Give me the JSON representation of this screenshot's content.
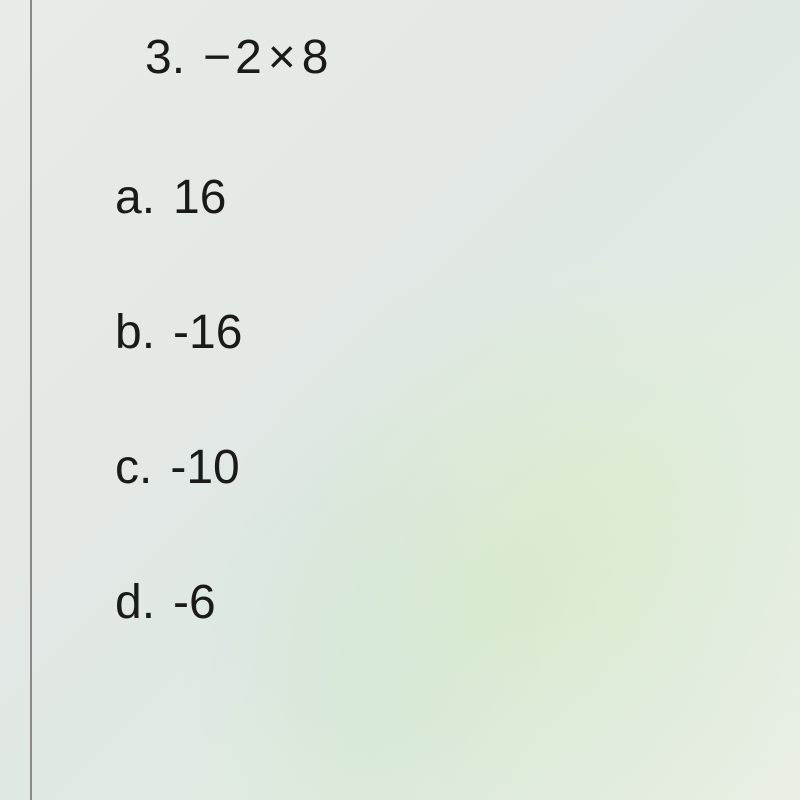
{
  "question": {
    "number": "3.",
    "expression": {
      "prefix": "−",
      "operand1": "2",
      "operator": "×",
      "operand2": "8"
    }
  },
  "options": [
    {
      "letter": "a.",
      "value": "16"
    },
    {
      "letter": "b.",
      "value": "-16"
    },
    {
      "letter": "c.",
      "value": "-10"
    },
    {
      "letter": "d.",
      "value": "-6"
    }
  ],
  "styling": {
    "background_base": "#e8ece8",
    "text_color": "#1a1a1a",
    "line_color": "#888888",
    "font_size": 48
  }
}
